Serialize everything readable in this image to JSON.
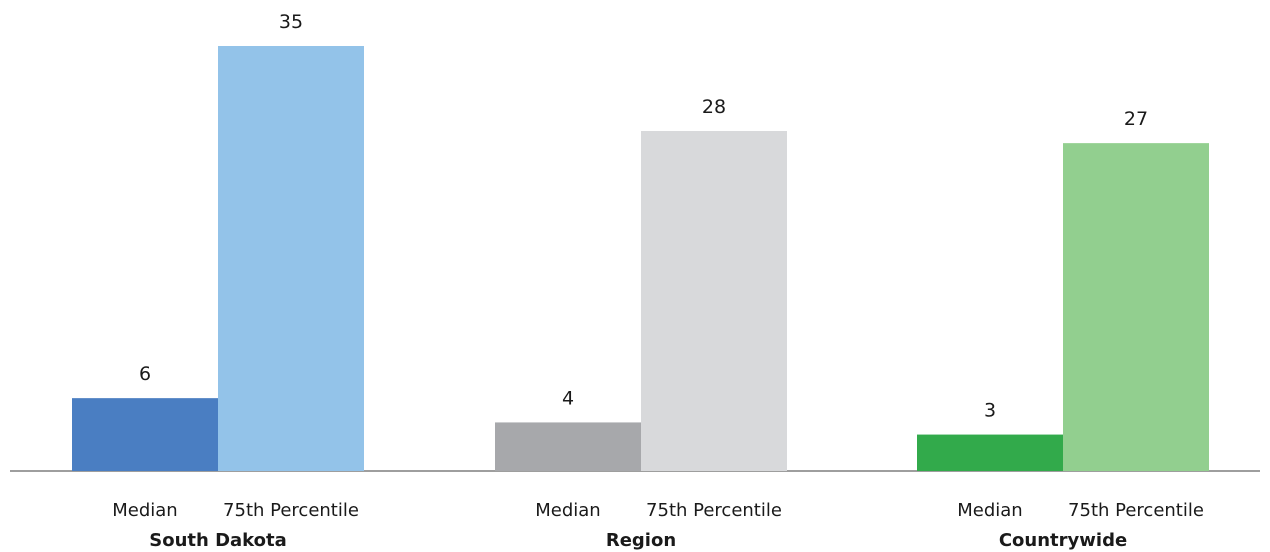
{
  "chart_data": {
    "type": "bar",
    "groups": [
      {
        "name": "South Dakota",
        "bars": [
          {
            "label": "Median",
            "value": 6,
            "color": "#4a7ec2"
          },
          {
            "label": "75th Percentile",
            "value": 35,
            "color": "#93c3e9"
          }
        ]
      },
      {
        "name": "Region",
        "bars": [
          {
            "label": "Median",
            "value": 4,
            "color": "#a7a8ab"
          },
          {
            "label": "75th Percentile",
            "value": 28,
            "color": "#d8d9db"
          }
        ]
      },
      {
        "name": "Countrywide",
        "bars": [
          {
            "label": "Median",
            "value": 3,
            "color": "#32aa4b"
          },
          {
            "label": "75th Percentile",
            "value": 27,
            "color": "#92cf8f"
          }
        ]
      }
    ],
    "ylim": [
      0,
      35
    ],
    "grid": false,
    "legend": "none",
    "axis_color": "#7f7f7f"
  }
}
